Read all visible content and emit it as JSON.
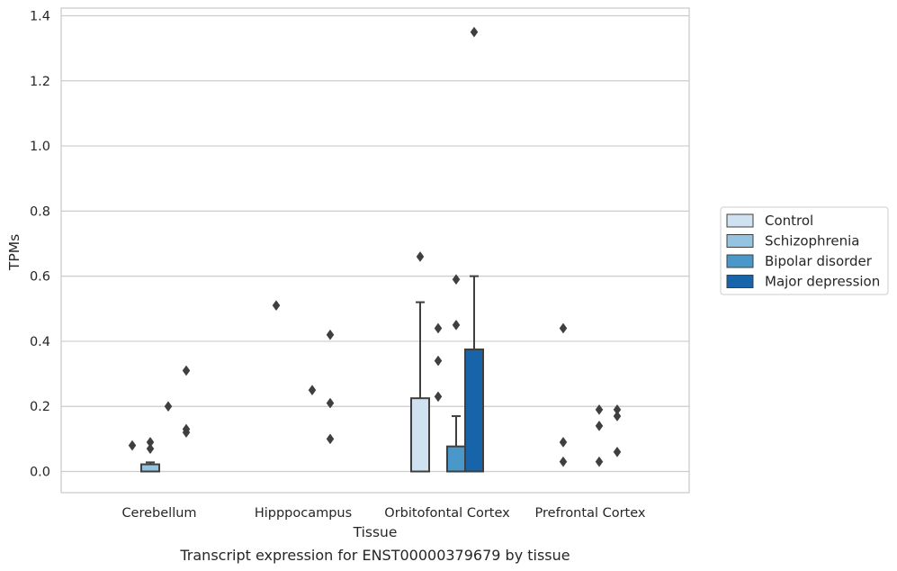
{
  "chart_data": {
    "type": "bar",
    "title": "",
    "caption": "Transcript expression for ENST00000379679 by tissue",
    "xlabel": "Tissue",
    "ylabel": "TPMs",
    "ylim": [
      -0.065,
      1.42
    ],
    "yticks": [
      0.0,
      0.2,
      0.4,
      0.6,
      0.8,
      1.0,
      1.2,
      1.4
    ],
    "ytick_labels": [
      "0.0",
      "0.2",
      "0.4",
      "0.6",
      "0.8",
      "1.0",
      "1.2",
      "1.4"
    ],
    "grid": true,
    "grid_axis": "y",
    "legend_position": "right",
    "categories": [
      "Cerebellum",
      "Hipppocampus",
      "Orbitofontal Cortex",
      "Prefrontal Cortex"
    ],
    "series": [
      {
        "name": "Control",
        "color": "#d0e1f2",
        "values": [
          0.0,
          0.0,
          0.225,
          0.0
        ],
        "error_upper": [
          null,
          null,
          0.52,
          null
        ],
        "outliers": [
          [
            0.08
          ],
          [
            0.51
          ],
          [
            0.66
          ],
          [
            0.44,
            0.09,
            0.03
          ]
        ]
      },
      {
        "name": "Schizophrenia",
        "color": "#94c4df",
        "values": [
          0.022,
          0.0,
          0.0,
          0.0
        ],
        "error_upper": [
          0.028,
          null,
          null,
          null
        ],
        "outliers": [
          [
            0.09,
            0.07
          ],
          [],
          [
            0.44,
            0.34,
            0.23
          ],
          []
        ]
      },
      {
        "name": "Bipolar disorder",
        "color": "#4a98c9",
        "values": [
          0.0,
          0.0,
          0.077,
          0.0
        ],
        "error_upper": [
          null,
          null,
          0.17,
          null
        ],
        "outliers": [
          [
            0.2
          ],
          [
            0.25
          ],
          [
            0.59,
            0.45
          ],
          [
            0.19,
            0.14,
            0.03
          ]
        ]
      },
      {
        "name": "Major depression",
        "color": "#1764ab",
        "values": [
          0.0,
          0.0,
          0.375,
          0.0
        ],
        "error_upper": [
          null,
          null,
          0.6,
          null
        ],
        "outliers": [
          [
            0.31,
            0.13,
            0.12
          ],
          [
            0.42,
            0.21,
            0.1
          ],
          [
            1.35
          ],
          [
            0.19,
            0.17,
            0.06
          ]
        ]
      }
    ]
  }
}
